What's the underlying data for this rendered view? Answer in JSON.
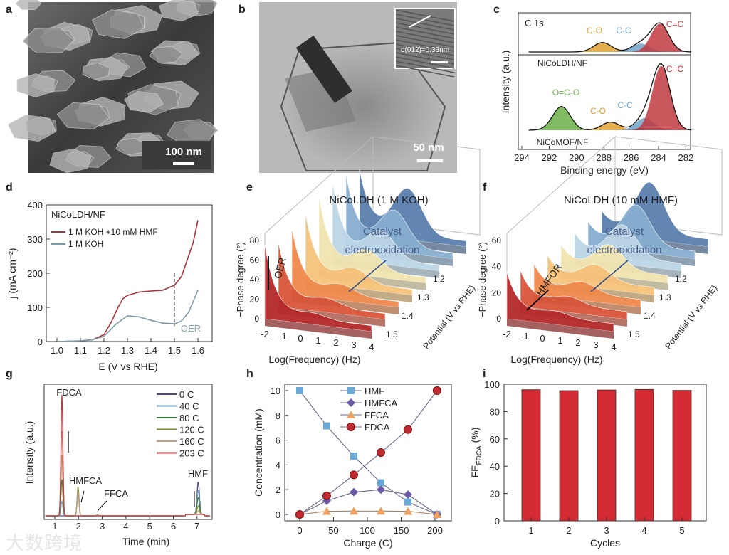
{
  "panel_labels": [
    "a",
    "b",
    "c",
    "d",
    "e",
    "f",
    "g",
    "h",
    "i"
  ],
  "images": {
    "a": {
      "scale_bar": "100 nm"
    },
    "b": {
      "scale_bar": "50 nm",
      "inset_label": "d(012)=0.33nm"
    }
  },
  "watermark": "大数跨境",
  "chart_data": [
    {
      "id": "c",
      "type": "area",
      "title": "C 1s",
      "xlabel": "Binding energy (eV)",
      "ylabel": "Intensity (a.u.)",
      "xlim": [
        294,
        281
      ],
      "xticks": [
        "294",
        "292",
        "290",
        "288",
        "286",
        "284",
        "282"
      ],
      "spectra": [
        {
          "name": "NiCoLDH/NF",
          "components": [
            {
              "label": "C-O",
              "center": 288.1,
              "height": 0.25,
              "color": "#e0a030"
            },
            {
              "label": "C-C",
              "center": 285.3,
              "height": 0.22,
              "color": "#6fa3c8"
            },
            {
              "label": "C=C",
              "center": 283.9,
              "height": 0.75,
              "color": "#c0393f"
            }
          ]
        },
        {
          "name": "NiCoMOF/NF",
          "components": [
            {
              "label": "O=C-O",
              "center": 291.1,
              "height": 0.35,
              "color": "#6bb04a"
            },
            {
              "label": "C-O",
              "center": 287.5,
              "height": 0.12,
              "color": "#e0a030"
            },
            {
              "label": "C-C",
              "center": 285.0,
              "height": 0.18,
              "color": "#6fa3c8"
            },
            {
              "label": "C=C",
              "center": 283.8,
              "height": 0.95,
              "color": "#c0393f"
            }
          ]
        }
      ]
    },
    {
      "id": "d",
      "type": "line",
      "title": "NiCoLDH/NF",
      "xlabel": "E (V vs RHE)",
      "ylabel": "j (mA cm⁻²)",
      "xlim": [
        0.95,
        1.62
      ],
      "ylim": [
        0,
        400
      ],
      "xticks": [
        "1.0",
        "1.1",
        "1.2",
        "1.3",
        "1.4",
        "1.5",
        "1.6"
      ],
      "yticks": [
        "0",
        "100",
        "200",
        "300",
        "400"
      ],
      "annotation": "OER",
      "marker_line_x": 1.5,
      "series": [
        {
          "name": "1 M KOH +10 mM HMF",
          "color": "#a8323a",
          "x": [
            1.0,
            1.1,
            1.15,
            1.2,
            1.23,
            1.26,
            1.28,
            1.3,
            1.35,
            1.4,
            1.45,
            1.5,
            1.53,
            1.55,
            1.58,
            1.6
          ],
          "y": [
            0,
            2,
            5,
            20,
            55,
            100,
            125,
            135,
            145,
            148,
            150,
            165,
            190,
            230,
            290,
            355
          ]
        },
        {
          "name": "1 M KOH",
          "color": "#7d9aa8",
          "x": [
            1.0,
            1.1,
            1.15,
            1.2,
            1.25,
            1.3,
            1.35,
            1.4,
            1.45,
            1.5,
            1.53,
            1.56,
            1.6
          ],
          "y": [
            0,
            2,
            5,
            15,
            50,
            75,
            72,
            62,
            54,
            52,
            60,
            85,
            150
          ]
        }
      ]
    },
    {
      "id": "e",
      "type": "area",
      "title": "NiCoLDH (1 M KOH)",
      "xlabel": "Log(Frequency) (Hz)",
      "ylabel": "−Phase degree (°)",
      "zlabel": "Potential (V vs RHE)",
      "xticks": [
        "-2",
        "-1",
        "0",
        "1",
        "2",
        "3",
        "4"
      ],
      "yticks": [
        "0",
        "20",
        "40",
        "60",
        "80"
      ],
      "zticks": [
        "1.2",
        "1.3",
        "1.4",
        "1.5"
      ],
      "ymax": 80,
      "annotations": [
        "OER",
        "Catalyst",
        "electrooxidation"
      ],
      "slice_colors": [
        "#b52a2a",
        "#d9553a",
        "#ef8a4c",
        "#f6c27a",
        "#f1e4b0",
        "#bcd6e6",
        "#87aed0",
        "#5b7fae"
      ],
      "left_peak": [
        70,
        60,
        62,
        65,
        70,
        72,
        68,
        60
      ],
      "mid_bump": [
        5,
        8,
        10,
        14,
        20,
        28,
        36,
        46
      ]
    },
    {
      "id": "f",
      "type": "area",
      "title": "NiCoLDH (10 mM HMF)",
      "xlabel": "Log(Frequency) (Hz)",
      "ylabel": "−Phase degree (°)",
      "zlabel": "Potential (V vs RHE)",
      "xticks": [
        "-2",
        "-1",
        "0",
        "1",
        "2",
        "3",
        "4"
      ],
      "yticks": [
        "0",
        "20",
        "40",
        "60"
      ],
      "zticks": [
        "1.2",
        "1.3",
        "1.4",
        "1.5"
      ],
      "ymax": 60,
      "annotations": [
        "HMFOR",
        "Catalyst",
        "electrooxidation"
      ],
      "slice_colors": [
        "#b52a2a",
        "#d9553a",
        "#ef8a4c",
        "#f6c27a",
        "#f1e4b0",
        "#bcd6e6",
        "#87aed0",
        "#5b7fae"
      ],
      "left_peak": [
        30,
        22,
        18,
        15,
        14,
        14,
        13,
        12
      ],
      "mid_bump": [
        4,
        6,
        8,
        12,
        18,
        24,
        30,
        38
      ]
    },
    {
      "id": "g",
      "type": "line",
      "xlabel": "Time (min)",
      "ylabel": "Intensity (a.u.)",
      "xlim": [
        0.5,
        7.6
      ],
      "xticks": [
        "1",
        "2",
        "3",
        "4",
        "5",
        "6",
        "7"
      ],
      "peak_labels": [
        "FDCA",
        "HMFCA",
        "FFCA",
        "HMF"
      ],
      "peak_times": [
        1.3,
        1.98,
        2.8,
        7.05
      ],
      "series": [
        {
          "name": "0 C",
          "color": "#4a4a8a",
          "heights": [
            0,
            0,
            0,
            0.27
          ]
        },
        {
          "name": "40 C",
          "color": "#6fa3c8",
          "heights": [
            0.12,
            0.2,
            0.01,
            0.2
          ]
        },
        {
          "name": "80 C",
          "color": "#3f7a3f",
          "heights": [
            0.3,
            0.22,
            0.01,
            0.14
          ]
        },
        {
          "name": "120 C",
          "color": "#7a8a30",
          "heights": [
            0.5,
            0.24,
            0.01,
            0.07
          ]
        },
        {
          "name": "160 C",
          "color": "#c8a080",
          "heights": [
            0.7,
            0.2,
            0.01,
            0.03
          ]
        },
        {
          "name": "203 C",
          "color": "#c0393f",
          "heights": [
            1.0,
            0.0,
            0.0,
            0.0
          ]
        }
      ]
    },
    {
      "id": "h",
      "type": "line",
      "xlabel": "Charge (C)",
      "ylabel": "Concentration (mM)",
      "xlim": [
        -20,
        222
      ],
      "ylim": [
        -0.5,
        10.5
      ],
      "xticks": [
        "0",
        "50",
        "100",
        "150",
        "200"
      ],
      "yticks": [
        "0",
        "2",
        "4",
        "6",
        "8",
        "10"
      ],
      "x": [
        0,
        40,
        80,
        120,
        160,
        203
      ],
      "series": [
        {
          "name": "HMF",
          "color": "#6aa9d4",
          "marker": "square",
          "values": [
            10,
            7.15,
            4.7,
            2.55,
            1.0,
            0
          ]
        },
        {
          "name": "HMFCA",
          "color": "#6a5aa8",
          "marker": "diamond",
          "values": [
            0,
            1.1,
            1.8,
            2.0,
            1.6,
            0
          ]
        },
        {
          "name": "FFCA",
          "color": "#f0a060",
          "marker": "triangle",
          "values": [
            0,
            0.25,
            0.27,
            0.27,
            0.25,
            0
          ]
        },
        {
          "name": "FDCA",
          "color": "#c02a30",
          "marker": "circle",
          "values": [
            0,
            1.5,
            3.2,
            5.0,
            6.85,
            10
          ]
        }
      ]
    },
    {
      "id": "i",
      "type": "bar",
      "xlabel": "Cycles",
      "ylabel": "FE(FDCA) (%)",
      "ylabel_main": "FE",
      "ylabel_sub": "FDCA",
      "ylabel_unit": " (%)",
      "ylim": [
        0,
        100
      ],
      "yticks": [
        "0",
        "20",
        "40",
        "60",
        "80",
        "100"
      ],
      "categories": [
        "1",
        "2",
        "3",
        "4",
        "5"
      ],
      "values": [
        96,
        95.3,
        95.8,
        96.2,
        95.5
      ],
      "color": "#d42a33"
    }
  ]
}
